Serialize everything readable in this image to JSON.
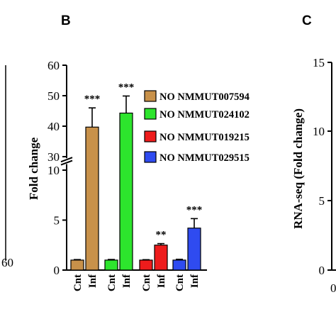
{
  "panels": {
    "b_letter": "B",
    "c_letter": "C",
    "left_fragment_tick": "60",
    "c_ylabel": "RNA-seq (Fold change)",
    "c_yticks": [
      "0",
      "5",
      "10",
      "15"
    ],
    "c_xtick_partial": "0"
  },
  "chart_data": {
    "type": "bar",
    "ylabel": "Fold change",
    "yticks_lower": [
      "0",
      "5",
      "10"
    ],
    "yticks_upper": [
      "30",
      "40",
      "50",
      "60"
    ],
    "axis_break": [
      10.6,
      29.5
    ],
    "ylim": [
      0,
      60
    ],
    "categories": [
      "Cnt",
      "Inf",
      "Cnt",
      "Inf",
      "Cnt",
      "Inf",
      "Cnt",
      "Inf"
    ],
    "series": [
      {
        "name": "NO NMMUT007594",
        "color": "#c8914a",
        "cnt": 1.0,
        "cnt_err": 0.05,
        "inf": 39.7,
        "inf_err": 6.3,
        "sig": "***"
      },
      {
        "name": "NO NMMUT024102",
        "color": "#2de52d",
        "cnt": 1.0,
        "cnt_err": 0.06,
        "inf": 44.3,
        "inf_err": 5.6,
        "sig": "***"
      },
      {
        "name": "NO NMMUT019215",
        "color": "#ee1c1c",
        "cnt": 1.0,
        "cnt_err": 0.04,
        "inf": 2.5,
        "inf_err": 0.15,
        "sig": "**"
      },
      {
        "name": "NO NMMUT029515",
        "color": "#2f4bf0",
        "cnt": 1.0,
        "cnt_err": 0.08,
        "inf": 4.2,
        "inf_err": 0.95,
        "sig": "***"
      }
    ],
    "legend_position": "right"
  }
}
